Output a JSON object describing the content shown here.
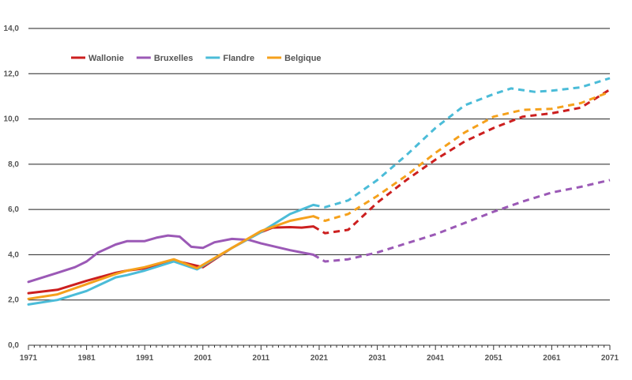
{
  "chart_data": {
    "type": "line",
    "title": "",
    "xlabel": "",
    "ylabel": "",
    "xlim": [
      1971,
      2071
    ],
    "ylim": [
      0,
      14
    ],
    "grid": true,
    "legend_position": "top-left",
    "y_ticks": [
      "0,0",
      "2,0",
      "4,0",
      "6,0",
      "8,0",
      "10,0",
      "12,0",
      "14,0"
    ],
    "x_ticks": [
      "1971",
      "1981",
      "1991",
      "2001",
      "2011",
      "2021",
      "2031",
      "2041",
      "2051",
      "2061",
      "2071"
    ],
    "projection_start": 2020,
    "series": [
      {
        "name": "Wallonie",
        "color": "#cc1f1f",
        "points": [
          [
            1971,
            2.3
          ],
          [
            1976,
            2.45
          ],
          [
            1981,
            2.85
          ],
          [
            1986,
            3.2
          ],
          [
            1988,
            3.3
          ],
          [
            1991,
            3.4
          ],
          [
            1996,
            3.75
          ],
          [
            2001,
            3.45
          ],
          [
            2006,
            4.3
          ],
          [
            2011,
            5.0
          ],
          [
            2013,
            5.2
          ],
          [
            2016,
            5.22
          ],
          [
            2018,
            5.2
          ],
          [
            2020,
            5.25
          ],
          [
            2022,
            4.95
          ],
          [
            2026,
            5.1
          ],
          [
            2031,
            6.3
          ],
          [
            2036,
            7.3
          ],
          [
            2041,
            8.2
          ],
          [
            2046,
            9.0
          ],
          [
            2051,
            9.6
          ],
          [
            2056,
            10.1
          ],
          [
            2061,
            10.25
          ],
          [
            2066,
            10.5
          ],
          [
            2071,
            11.3
          ]
        ]
      },
      {
        "name": "Bruxelles",
        "color": "#9b59b6",
        "points": [
          [
            1971,
            2.8
          ],
          [
            1976,
            3.2
          ],
          [
            1979,
            3.45
          ],
          [
            1981,
            3.7
          ],
          [
            1983,
            4.1
          ],
          [
            1986,
            4.45
          ],
          [
            1988,
            4.6
          ],
          [
            1991,
            4.6
          ],
          [
            1993,
            4.75
          ],
          [
            1995,
            4.85
          ],
          [
            1997,
            4.8
          ],
          [
            1999,
            4.35
          ],
          [
            2001,
            4.3
          ],
          [
            2003,
            4.55
          ],
          [
            2006,
            4.7
          ],
          [
            2009,
            4.65
          ],
          [
            2011,
            4.5
          ],
          [
            2016,
            4.2
          ],
          [
            2020,
            4.0
          ],
          [
            2022,
            3.7
          ],
          [
            2026,
            3.8
          ],
          [
            2031,
            4.1
          ],
          [
            2036,
            4.5
          ],
          [
            2041,
            4.9
          ],
          [
            2046,
            5.4
          ],
          [
            2051,
            5.9
          ],
          [
            2056,
            6.35
          ],
          [
            2061,
            6.75
          ],
          [
            2066,
            7.0
          ],
          [
            2071,
            7.3
          ]
        ]
      },
      {
        "name": "Flandre",
        "color": "#4bbcd8",
        "points": [
          [
            1971,
            1.8
          ],
          [
            1976,
            2.0
          ],
          [
            1981,
            2.4
          ],
          [
            1986,
            3.0
          ],
          [
            1988,
            3.1
          ],
          [
            1991,
            3.3
          ],
          [
            1996,
            3.7
          ],
          [
            2000,
            3.35
          ],
          [
            2006,
            4.3
          ],
          [
            2011,
            5.0
          ],
          [
            2016,
            5.8
          ],
          [
            2020,
            6.2
          ],
          [
            2022,
            6.1
          ],
          [
            2026,
            6.4
          ],
          [
            2031,
            7.3
          ],
          [
            2036,
            8.4
          ],
          [
            2041,
            9.6
          ],
          [
            2046,
            10.6
          ],
          [
            2051,
            11.1
          ],
          [
            2054,
            11.35
          ],
          [
            2058,
            11.2
          ],
          [
            2061,
            11.25
          ],
          [
            2066,
            11.4
          ],
          [
            2071,
            11.8
          ]
        ]
      },
      {
        "name": "Belgique",
        "color": "#f5a11c",
        "points": [
          [
            1971,
            2.05
          ],
          [
            1976,
            2.25
          ],
          [
            1981,
            2.7
          ],
          [
            1986,
            3.15
          ],
          [
            1988,
            3.3
          ],
          [
            1991,
            3.45
          ],
          [
            1996,
            3.8
          ],
          [
            2000,
            3.4
          ],
          [
            2006,
            4.3
          ],
          [
            2011,
            5.05
          ],
          [
            2016,
            5.5
          ],
          [
            2020,
            5.7
          ],
          [
            2022,
            5.5
          ],
          [
            2026,
            5.8
          ],
          [
            2031,
            6.6
          ],
          [
            2036,
            7.5
          ],
          [
            2041,
            8.5
          ],
          [
            2046,
            9.4
          ],
          [
            2051,
            10.1
          ],
          [
            2056,
            10.4
          ],
          [
            2061,
            10.45
          ],
          [
            2066,
            10.7
          ],
          [
            2071,
            11.2
          ]
        ]
      }
    ]
  }
}
